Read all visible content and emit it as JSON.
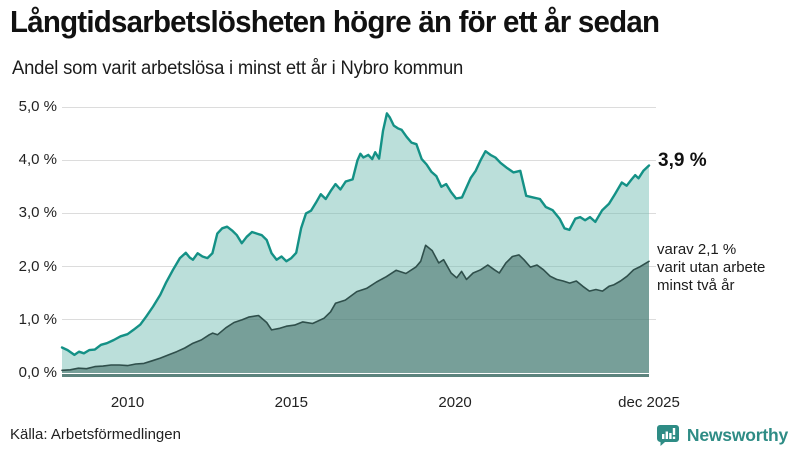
{
  "header": {
    "title": "Långtidsarbetslösheten högre än för ett år sedan",
    "subtitle": "Andel som varit arbetslösa i minst ett år i Nybro kommun"
  },
  "footer": {
    "source": "Källa: Arbetsförmedlingen",
    "brand": "Newsworthy",
    "brand_color": "#2e8c85"
  },
  "chart_data": {
    "type": "area",
    "title": "Långtidsarbetslösheten högre än för ett år sedan",
    "subtitle": "Andel som varit arbetslösa i minst ett år i Nybro kommun",
    "grid": "horizontal",
    "background": "#ffffff",
    "gridline_color": "#dcdcdc",
    "axis_line_color": "#5c837d",
    "y_axis": {
      "unit": "%",
      "range": [
        0,
        5
      ],
      "ticks": [
        {
          "label": "0,0 %",
          "value": 0
        },
        {
          "label": "1,0 %",
          "value": 1
        },
        {
          "label": "2,0 %",
          "value": 2
        },
        {
          "label": "3,0 %",
          "value": 3
        },
        {
          "label": "4,0 %",
          "value": 4
        },
        {
          "label": "5,0 %",
          "value": 5
        }
      ]
    },
    "x_axis": {
      "range_years": [
        2008.0,
        2025.92
      ],
      "ticks": [
        {
          "label": "2010",
          "t": 2010.0
        },
        {
          "label": "2015",
          "t": 2015.0
        },
        {
          "label": "2020",
          "t": 2020.0
        },
        {
          "label": "dec 2025",
          "t": 2025.92
        }
      ]
    },
    "annotations": {
      "latest_total": "3,9 %",
      "sub_lines": [
        "varav 2,1 %",
        "varit utan arbete",
        "minst två år"
      ]
    },
    "series": [
      {
        "name": "Andel arbetslösa minst ett år",
        "latest_value": 3.9,
        "line_color": "#149186",
        "line_width": 2.4,
        "fill_color": "rgba(104,183,172,0.45)",
        "points": [
          [
            2008.0,
            0.48
          ],
          [
            2008.17,
            0.43
          ],
          [
            2008.38,
            0.34
          ],
          [
            2008.52,
            0.4
          ],
          [
            2008.67,
            0.37
          ],
          [
            2008.83,
            0.43
          ],
          [
            2009.0,
            0.44
          ],
          [
            2009.19,
            0.53
          ],
          [
            2009.37,
            0.56
          ],
          [
            2009.58,
            0.62
          ],
          [
            2009.79,
            0.69
          ],
          [
            2010.0,
            0.73
          ],
          [
            2010.18,
            0.81
          ],
          [
            2010.39,
            0.91
          ],
          [
            2010.57,
            1.06
          ],
          [
            2010.78,
            1.25
          ],
          [
            2011.0,
            1.47
          ],
          [
            2011.17,
            1.69
          ],
          [
            2011.39,
            1.94
          ],
          [
            2011.6,
            2.16
          ],
          [
            2011.78,
            2.26
          ],
          [
            2011.9,
            2.17
          ],
          [
            2012.0,
            2.13
          ],
          [
            2012.14,
            2.25
          ],
          [
            2012.29,
            2.19
          ],
          [
            2012.44,
            2.16
          ],
          [
            2012.59,
            2.25
          ],
          [
            2012.74,
            2.62
          ],
          [
            2012.89,
            2.72
          ],
          [
            2013.04,
            2.75
          ],
          [
            2013.19,
            2.68
          ],
          [
            2013.34,
            2.59
          ],
          [
            2013.49,
            2.44
          ],
          [
            2013.64,
            2.56
          ],
          [
            2013.8,
            2.65
          ],
          [
            2013.95,
            2.62
          ],
          [
            2014.1,
            2.59
          ],
          [
            2014.25,
            2.5
          ],
          [
            2014.4,
            2.25
          ],
          [
            2014.55,
            2.13
          ],
          [
            2014.7,
            2.19
          ],
          [
            2014.85,
            2.1
          ],
          [
            2015.0,
            2.16
          ],
          [
            2015.15,
            2.26
          ],
          [
            2015.3,
            2.72
          ],
          [
            2015.45,
            3.0
          ],
          [
            2015.6,
            3.05
          ],
          [
            2015.75,
            3.2
          ],
          [
            2015.9,
            3.36
          ],
          [
            2016.05,
            3.27
          ],
          [
            2016.2,
            3.42
          ],
          [
            2016.35,
            3.55
          ],
          [
            2016.5,
            3.45
          ],
          [
            2016.66,
            3.6
          ],
          [
            2016.87,
            3.64
          ],
          [
            2017.02,
            4.0
          ],
          [
            2017.11,
            4.12
          ],
          [
            2017.2,
            4.05
          ],
          [
            2017.35,
            4.1
          ],
          [
            2017.47,
            4.02
          ],
          [
            2017.56,
            4.15
          ],
          [
            2017.68,
            4.03
          ],
          [
            2017.8,
            4.55
          ],
          [
            2017.92,
            4.88
          ],
          [
            2018.01,
            4.8
          ],
          [
            2018.13,
            4.65
          ],
          [
            2018.25,
            4.6
          ],
          [
            2018.37,
            4.57
          ],
          [
            2018.52,
            4.44
          ],
          [
            2018.67,
            4.33
          ],
          [
            2018.82,
            4.3
          ],
          [
            2018.98,
            4.02
          ],
          [
            2019.13,
            3.92
          ],
          [
            2019.28,
            3.78
          ],
          [
            2019.43,
            3.7
          ],
          [
            2019.58,
            3.5
          ],
          [
            2019.73,
            3.55
          ],
          [
            2019.88,
            3.4
          ],
          [
            2020.03,
            3.28
          ],
          [
            2020.21,
            3.3
          ],
          [
            2020.48,
            3.67
          ],
          [
            2020.63,
            3.8
          ],
          [
            2020.78,
            4.0
          ],
          [
            2020.93,
            4.17
          ],
          [
            2021.08,
            4.1
          ],
          [
            2021.23,
            4.05
          ],
          [
            2021.39,
            3.95
          ],
          [
            2021.57,
            3.86
          ],
          [
            2021.78,
            3.77
          ],
          [
            2021.99,
            3.8
          ],
          [
            2022.17,
            3.33
          ],
          [
            2022.38,
            3.3
          ],
          [
            2022.59,
            3.27
          ],
          [
            2022.77,
            3.12
          ],
          [
            2022.98,
            3.06
          ],
          [
            2023.19,
            2.9
          ],
          [
            2023.34,
            2.72
          ],
          [
            2023.49,
            2.69
          ],
          [
            2023.67,
            2.9
          ],
          [
            2023.82,
            2.93
          ],
          [
            2023.97,
            2.87
          ],
          [
            2024.12,
            2.93
          ],
          [
            2024.28,
            2.84
          ],
          [
            2024.49,
            3.06
          ],
          [
            2024.7,
            3.18
          ],
          [
            2024.88,
            3.36
          ],
          [
            2025.09,
            3.58
          ],
          [
            2025.24,
            3.52
          ],
          [
            2025.39,
            3.64
          ],
          [
            2025.5,
            3.72
          ],
          [
            2025.6,
            3.66
          ],
          [
            2025.75,
            3.8
          ],
          [
            2025.92,
            3.9
          ]
        ]
      },
      {
        "name": "Andel arbetslösa minst två år",
        "latest_value": 2.1,
        "line_color": "#2f4f4b",
        "line_width": 1.6,
        "fill_color": "rgba(58,100,94,0.52)",
        "points": [
          [
            2008.0,
            0.05
          ],
          [
            2008.25,
            0.06
          ],
          [
            2008.5,
            0.09
          ],
          [
            2008.75,
            0.08
          ],
          [
            2009.0,
            0.12
          ],
          [
            2009.25,
            0.13
          ],
          [
            2009.5,
            0.15
          ],
          [
            2009.75,
            0.15
          ],
          [
            2010.0,
            0.14
          ],
          [
            2010.25,
            0.17
          ],
          [
            2010.5,
            0.18
          ],
          [
            2010.75,
            0.23
          ],
          [
            2011.0,
            0.28
          ],
          [
            2011.25,
            0.34
          ],
          [
            2011.5,
            0.4
          ],
          [
            2011.75,
            0.47
          ],
          [
            2012.0,
            0.56
          ],
          [
            2012.25,
            0.62
          ],
          [
            2012.5,
            0.72
          ],
          [
            2012.6,
            0.75
          ],
          [
            2012.75,
            0.72
          ],
          [
            2013.0,
            0.85
          ],
          [
            2013.25,
            0.95
          ],
          [
            2013.5,
            1.0
          ],
          [
            2013.7,
            1.05
          ],
          [
            2014.0,
            1.08
          ],
          [
            2014.25,
            0.95
          ],
          [
            2014.4,
            0.81
          ],
          [
            2014.65,
            0.84
          ],
          [
            2014.85,
            0.88
          ],
          [
            2015.1,
            0.9
          ],
          [
            2015.35,
            0.96
          ],
          [
            2015.65,
            0.93
          ],
          [
            2016.0,
            1.03
          ],
          [
            2016.2,
            1.15
          ],
          [
            2016.35,
            1.31
          ],
          [
            2016.65,
            1.37
          ],
          [
            2017.0,
            1.53
          ],
          [
            2017.3,
            1.59
          ],
          [
            2017.6,
            1.71
          ],
          [
            2017.9,
            1.81
          ],
          [
            2018.2,
            1.93
          ],
          [
            2018.5,
            1.87
          ],
          [
            2018.8,
            1.99
          ],
          [
            2018.95,
            2.1
          ],
          [
            2019.1,
            2.4
          ],
          [
            2019.3,
            2.3
          ],
          [
            2019.5,
            2.07
          ],
          [
            2019.65,
            2.13
          ],
          [
            2019.88,
            1.88
          ],
          [
            2020.05,
            1.79
          ],
          [
            2020.2,
            1.91
          ],
          [
            2020.35,
            1.76
          ],
          [
            2020.55,
            1.88
          ],
          [
            2020.78,
            1.94
          ],
          [
            2021.0,
            2.03
          ],
          [
            2021.2,
            1.94
          ],
          [
            2021.35,
            1.88
          ],
          [
            2021.55,
            2.07
          ],
          [
            2021.75,
            2.19
          ],
          [
            2021.95,
            2.22
          ],
          [
            2022.1,
            2.13
          ],
          [
            2022.3,
            1.99
          ],
          [
            2022.5,
            2.03
          ],
          [
            2022.7,
            1.94
          ],
          [
            2022.9,
            1.82
          ],
          [
            2023.1,
            1.76
          ],
          [
            2023.3,
            1.73
          ],
          [
            2023.5,
            1.69
          ],
          [
            2023.7,
            1.73
          ],
          [
            2023.9,
            1.63
          ],
          [
            2024.1,
            1.54
          ],
          [
            2024.3,
            1.57
          ],
          [
            2024.5,
            1.54
          ],
          [
            2024.7,
            1.63
          ],
          [
            2024.85,
            1.66
          ],
          [
            2025.05,
            1.73
          ],
          [
            2025.25,
            1.82
          ],
          [
            2025.45,
            1.94
          ],
          [
            2025.65,
            2.0
          ],
          [
            2025.92,
            2.1
          ]
        ]
      }
    ]
  }
}
